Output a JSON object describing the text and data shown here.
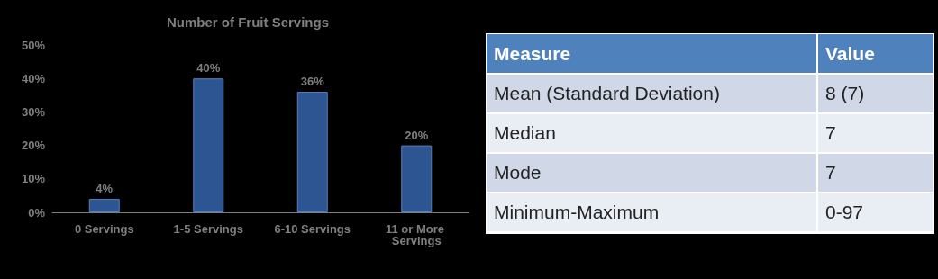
{
  "chart_data": [
    {
      "type": "bar",
      "title": "Number of Fruit Servings",
      "categories": [
        "0 Servings",
        "1-5 Servings",
        "6-10 Servings",
        "11 or More Servings"
      ],
      "values": [
        4,
        40,
        36,
        20
      ],
      "value_labels": [
        "4%",
        "40%",
        "36%",
        "20%"
      ],
      "color": "#2c5592",
      "ylim": [
        0,
        50
      ],
      "yticks": [
        {
          "value": 0,
          "label": "0%"
        },
        {
          "value": 10,
          "label": "10%"
        },
        {
          "value": 20,
          "label": "20%"
        },
        {
          "value": 30,
          "label": "30%"
        },
        {
          "value": 40,
          "label": "40%"
        },
        {
          "value": 50,
          "label": "50%"
        }
      ],
      "grid": false
    },
    {
      "type": "other",
      "annotations": [
        "Measure",
        "Value",
        "Mean (Standard Deviation)",
        "8 (7)",
        "Median",
        "7",
        "Mode",
        "7",
        "Minimum-Maximum",
        "0-97"
      ]
    }
  ]
}
